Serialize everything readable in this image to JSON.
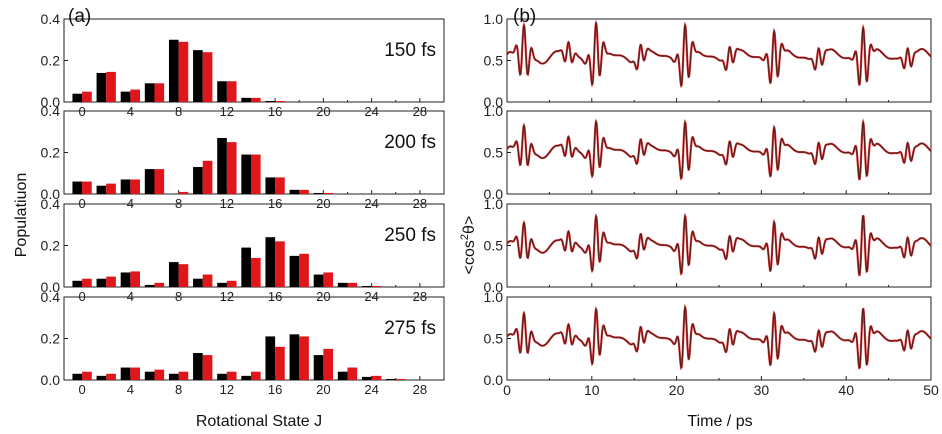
{
  "figure": {
    "left_label": "(a)",
    "right_label": "(b)"
  },
  "chart_data": [
    {
      "type": "bar",
      "panel": "(a)",
      "xlabel": "Rotational State J",
      "ylabel": "Populatiuon",
      "xlim": [
        -1.5,
        30
      ],
      "ylim": [
        0,
        0.4
      ],
      "xticks": [
        "0",
        "4",
        "8",
        "12",
        "16",
        "20",
        "24",
        "28"
      ],
      "yticks": [
        "0.0",
        "0.2",
        "0.4"
      ],
      "categories": [
        0,
        2,
        4,
        6,
        8,
        10,
        12,
        14,
        16,
        18,
        20,
        22,
        24,
        26,
        28
      ],
      "colors": {
        "black_series": "#000000",
        "red_series": "#e0161b"
      },
      "subplots": [
        {
          "annotation": "150 fs",
          "black": [
            0.04,
            0.14,
            0.05,
            0.09,
            0.3,
            0.25,
            0.1,
            0.02,
            0.005,
            0.0,
            0.0,
            0.0,
            0.0,
            0.0,
            0.0
          ],
          "red": [
            0.05,
            0.145,
            0.06,
            0.09,
            0.29,
            0.24,
            0.1,
            0.02,
            0.005,
            0.0,
            0.0,
            0.0,
            0.0,
            0.0,
            0.0
          ]
        },
        {
          "annotation": "200 fs",
          "black": [
            0.06,
            0.04,
            0.07,
            0.12,
            0.0,
            0.13,
            0.27,
            0.19,
            0.08,
            0.02,
            0.005,
            0.0,
            0.0,
            0.0,
            0.0
          ],
          "red": [
            0.06,
            0.05,
            0.07,
            0.12,
            0.01,
            0.16,
            0.25,
            0.19,
            0.08,
            0.02,
            0.005,
            0.0,
            0.0,
            0.0,
            0.0
          ]
        },
        {
          "annotation": "250 fs",
          "black": [
            0.03,
            0.04,
            0.07,
            0.01,
            0.12,
            0.04,
            0.02,
            0.19,
            0.24,
            0.15,
            0.06,
            0.02,
            0.005,
            0.0,
            0.0
          ],
          "red": [
            0.04,
            0.05,
            0.075,
            0.02,
            0.11,
            0.06,
            0.03,
            0.14,
            0.22,
            0.16,
            0.07,
            0.02,
            0.005,
            0.0,
            0.0
          ]
        },
        {
          "annotation": "275 fs",
          "black": [
            0.03,
            0.02,
            0.06,
            0.04,
            0.03,
            0.13,
            0.03,
            0.02,
            0.21,
            0.22,
            0.12,
            0.04,
            0.015,
            0.005,
            0.0
          ],
          "red": [
            0.04,
            0.03,
            0.06,
            0.05,
            0.04,
            0.12,
            0.04,
            0.04,
            0.16,
            0.21,
            0.15,
            0.06,
            0.02,
            0.005,
            0.0
          ]
        }
      ]
    },
    {
      "type": "line",
      "panel": "(b)",
      "xlabel": "Time / ps",
      "ylabel_parts": {
        "prefix": "<cos",
        "superscript": "2",
        "suffix": "θ>"
      },
      "xlim": [
        0,
        50
      ],
      "ylim": [
        0,
        1.0
      ],
      "xticks": [
        "0",
        "10",
        "20",
        "30",
        "40",
        "50"
      ],
      "yticks": [
        "0.0",
        "0.5",
        "1.0"
      ],
      "colors": {
        "line": "#5a1e1a",
        "markers": "#e0161b"
      },
      "subplots": [
        {
          "baseline": 0.55,
          "revivals": [
            {
              "t": 2.0,
              "amp": 0.35
            },
            {
              "t": 10.5,
              "amp": 0.4
            },
            {
              "t": 21.0,
              "amp": 0.4
            },
            {
              "t": 31.5,
              "amp": 0.35
            },
            {
              "t": 42.0,
              "amp": 0.4
            }
          ]
        },
        {
          "baseline": 0.52,
          "revivals": [
            {
              "t": 2.0,
              "amp": 0.28
            },
            {
              "t": 10.5,
              "amp": 0.35
            },
            {
              "t": 21.0,
              "amp": 0.37
            },
            {
              "t": 31.5,
              "amp": 0.33
            },
            {
              "t": 42.0,
              "amp": 0.4
            }
          ]
        },
        {
          "baseline": 0.5,
          "revivals": [
            {
              "t": 2.0,
              "amp": 0.25
            },
            {
              "t": 10.5,
              "amp": 0.35
            },
            {
              "t": 21.0,
              "amp": 0.38
            },
            {
              "t": 31.5,
              "amp": 0.33
            },
            {
              "t": 42.0,
              "amp": 0.42
            }
          ]
        },
        {
          "baseline": 0.5,
          "revivals": [
            {
              "t": 2.0,
              "amp": 0.28
            },
            {
              "t": 10.5,
              "amp": 0.35
            },
            {
              "t": 21.0,
              "amp": 0.4
            },
            {
              "t": 31.5,
              "amp": 0.35
            },
            {
              "t": 42.0,
              "amp": 0.42
            }
          ]
        }
      ]
    }
  ]
}
